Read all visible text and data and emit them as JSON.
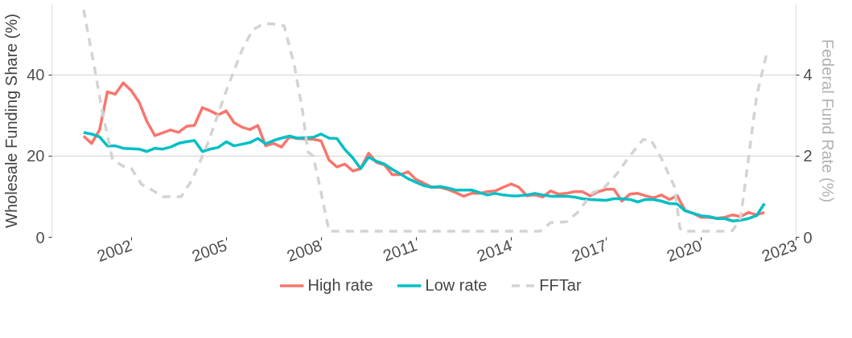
{
  "chart_data": {
    "type": "line",
    "ylabel": "Wholesale Funding Share (%)",
    "y2label": "Federal Fund Rate (%)",
    "xlim": [
      "1999-07",
      "2023-01"
    ],
    "xticks": [
      "2002",
      "2005",
      "2008",
      "2011",
      "2014",
      "2017",
      "2020",
      "2023"
    ],
    "ylim": [
      0,
      57.3
    ],
    "yticks": [
      0,
      20,
      40
    ],
    "y2lim": [
      0,
      5.73
    ],
    "y2ticks": [
      0,
      2,
      4
    ],
    "grid": "y",
    "legend": "bottom",
    "marker": "none",
    "x": [
      "2000-07",
      "2000-10",
      "2001-01",
      "2001-04",
      "2001-07",
      "2001-10",
      "2002-01",
      "2002-04",
      "2002-07",
      "2002-10",
      "2003-01",
      "2003-04",
      "2003-07",
      "2003-10",
      "2004-01",
      "2004-04",
      "2004-07",
      "2004-10",
      "2005-01",
      "2005-04",
      "2005-07",
      "2005-10",
      "2006-01",
      "2006-04",
      "2006-07",
      "2006-10",
      "2007-01",
      "2007-04",
      "2007-07",
      "2007-10",
      "2008-01",
      "2008-04",
      "2008-07",
      "2008-10",
      "2009-01",
      "2009-04",
      "2009-07",
      "2009-10",
      "2010-01",
      "2010-04",
      "2010-07",
      "2010-10",
      "2011-01",
      "2011-04",
      "2011-07",
      "2011-10",
      "2012-01",
      "2012-04",
      "2012-07",
      "2012-10",
      "2013-01",
      "2013-04",
      "2013-07",
      "2013-10",
      "2014-01",
      "2014-04",
      "2014-07",
      "2014-10",
      "2015-01",
      "2015-04",
      "2015-07",
      "2015-10",
      "2016-01",
      "2016-04",
      "2016-07",
      "2016-10",
      "2017-01",
      "2017-04",
      "2017-07",
      "2017-10",
      "2018-01",
      "2018-04",
      "2018-07",
      "2018-10",
      "2019-01",
      "2019-04",
      "2019-07",
      "2019-10",
      "2020-01",
      "2020-04",
      "2020-07",
      "2020-10",
      "2021-01",
      "2021-04",
      "2021-07",
      "2021-10",
      "2022-01"
    ],
    "series": [
      {
        "name": "High rate",
        "color": "#f8766d",
        "line_style": "solid",
        "values": [
          24.9,
          23.1,
          26.4,
          35.8,
          35.2,
          38.0,
          36.1,
          33.3,
          28.5,
          25.0,
          25.7,
          26.4,
          25.8,
          27.3,
          27.5,
          31.9,
          31.1,
          30.1,
          31.1,
          28.2,
          27.1,
          26.5,
          27.5,
          22.5,
          23.1,
          22.2,
          24.7,
          24.3,
          24.2,
          24.1,
          23.7,
          19.0,
          17.3,
          18.0,
          16.3,
          16.9,
          20.7,
          18.4,
          17.8,
          15.4,
          15.4,
          16.1,
          14.2,
          13.3,
          12.3,
          12.3,
          11.8,
          11.0,
          10.1,
          10.8,
          10.8,
          11.2,
          11.4,
          12.3,
          13.1,
          12.3,
          10.2,
          10.4,
          9.9,
          11.4,
          10.6,
          10.8,
          11.2,
          11.2,
          10.2,
          11.2,
          11.8,
          11.8,
          8.9,
          10.6,
          10.8,
          10.2,
          9.7,
          10.4,
          9.3,
          10.2,
          6.6,
          5.9,
          4.9,
          4.9,
          4.7,
          4.9,
          5.5,
          5.1,
          6.1,
          5.5,
          6.1
        ]
      },
      {
        "name": "Low rate",
        "color": "#00bfc4",
        "line_style": "solid",
        "values": [
          25.8,
          25.4,
          24.7,
          22.5,
          22.5,
          21.9,
          21.8,
          21.7,
          21.1,
          21.9,
          21.7,
          22.2,
          23.1,
          23.5,
          23.8,
          21.1,
          21.7,
          22.1,
          23.5,
          22.5,
          22.9,
          23.3,
          24.3,
          23.0,
          23.8,
          24.4,
          24.9,
          24.4,
          24.5,
          24.6,
          25.4,
          24.4,
          24.3,
          21.6,
          19.5,
          16.9,
          19.7,
          18.7,
          18.0,
          16.7,
          15.6,
          14.4,
          13.5,
          12.7,
          12.3,
          12.5,
          12.1,
          11.6,
          11.6,
          11.6,
          11.0,
          10.4,
          10.8,
          10.4,
          10.2,
          10.2,
          10.4,
          10.8,
          10.4,
          10.1,
          10.1,
          10.1,
          9.9,
          9.5,
          9.3,
          9.2,
          9.1,
          9.5,
          9.5,
          9.3,
          8.7,
          9.3,
          9.3,
          8.9,
          8.3,
          8.2,
          6.5,
          5.9,
          5.3,
          5.1,
          4.6,
          4.6,
          4.0,
          4.2,
          4.6,
          5.3,
          8.3
        ]
      },
      {
        "name": "FFTar",
        "color": "#d3d3d3",
        "line_style": "dashed",
        "axis": "y2",
        "x": [
          "2000-07",
          "2000-11",
          "2001-02",
          "2001-06",
          "2001-10",
          "2002-01",
          "2002-05",
          "2002-08",
          "2003-01",
          "2003-08",
          "2003-12",
          "2004-06",
          "2005-01",
          "2005-07",
          "2005-11",
          "2006-03",
          "2006-07",
          "2006-11",
          "2007-03",
          "2007-06",
          "2007-08",
          "2007-10",
          "2008-01",
          "2008-04",
          "2014-12",
          "2015-04",
          "2015-10",
          "2016-02",
          "2016-08",
          "2016-12",
          "2017-05",
          "2017-10",
          "2018-03",
          "2018-06",
          "2018-10",
          "2019-03",
          "2019-05",
          "2019-06",
          "2020-12",
          "2021-01",
          "2021-04",
          "2021-07",
          "2021-10",
          "2022-01",
          "2022-02"
        ],
        "values": [
          5.6,
          4.2,
          3.1,
          1.9,
          1.75,
          1.7,
          1.3,
          1.2,
          1.0,
          1.0,
          1.4,
          2.3,
          3.6,
          4.6,
          5.1,
          5.25,
          5.25,
          5.2,
          4.2,
          3.1,
          2.1,
          2.0,
          1.1,
          0.15,
          0.15,
          0.36,
          0.38,
          0.6,
          1.1,
          1.2,
          1.55,
          2.0,
          2.4,
          2.4,
          1.94,
          1.24,
          0.23,
          0.15,
          0.15,
          0.17,
          0.48,
          1.94,
          3.45,
          4.3,
          4.55
        ]
      }
    ]
  }
}
